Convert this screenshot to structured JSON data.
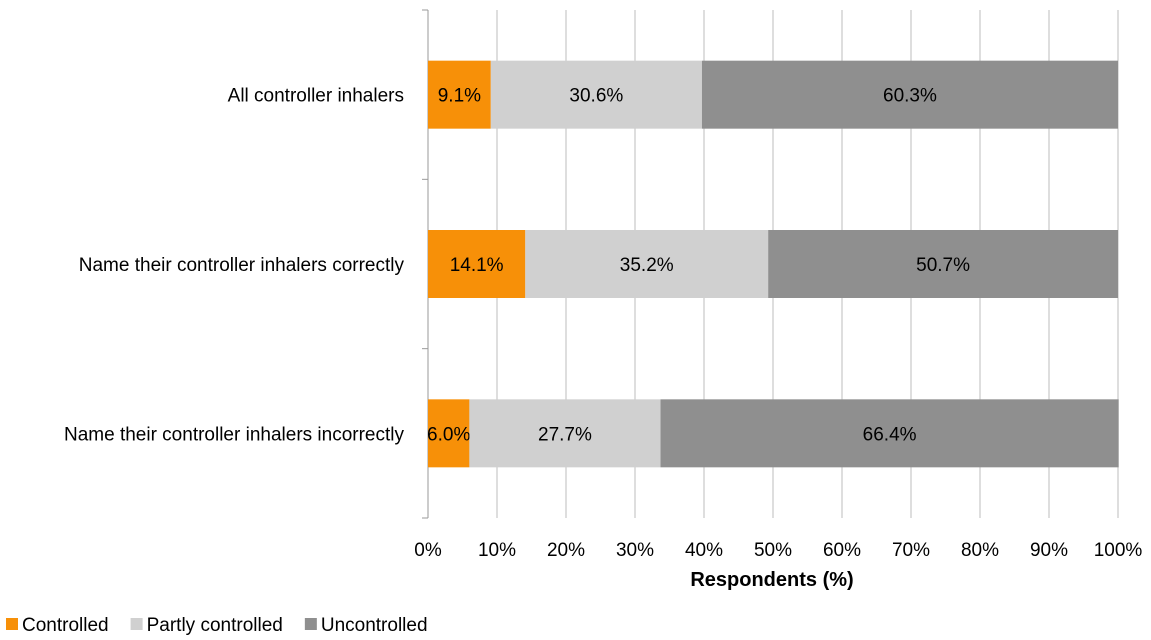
{
  "chart_data": {
    "type": "bar",
    "orientation": "horizontal",
    "stacked": true,
    "categories": [
      "All controller inhalers",
      "Name their controller inhalers correctly",
      "Name their controller inhalers incorrectly"
    ],
    "series": [
      {
        "name": "Controlled",
        "color": "#f79008",
        "values": [
          9.1,
          14.1,
          6.0
        ],
        "labels": [
          "9.1%",
          "14.1%",
          "6.0%"
        ]
      },
      {
        "name": "Partly controlled",
        "color": "#d0d0d0",
        "values": [
          30.6,
          35.2,
          27.7
        ],
        "labels": [
          "30.6%",
          "35.2%",
          "27.7%"
        ]
      },
      {
        "name": "Uncontrolled",
        "color": "#8f8f8f",
        "values": [
          60.3,
          50.7,
          66.4
        ],
        "labels": [
          "60.3%",
          "50.7%",
          "66.4%"
        ]
      }
    ],
    "xlabel": "Respondents (%)",
    "xlim": [
      0,
      100
    ],
    "xticks": [
      "0%",
      "10%",
      "20%",
      "30%",
      "40%",
      "50%",
      "60%",
      "70%",
      "80%",
      "90%",
      "100%"
    ],
    "grid": "vertical",
    "legend": "bottom-left"
  }
}
